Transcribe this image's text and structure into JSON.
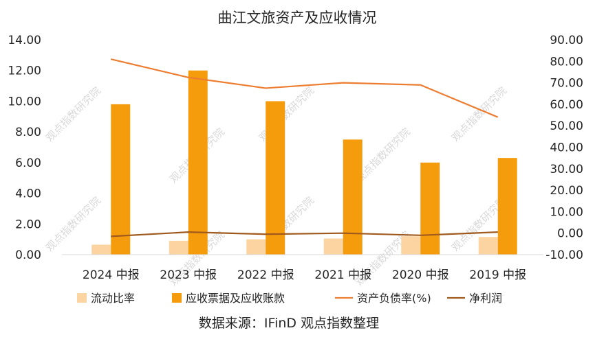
{
  "title": "曲江文旅资产及应收情况",
  "source": "数据来源：IFinD  观点指数整理",
  "watermark": "观点指数研究院",
  "colors": {
    "current_ratio": "#fbd4a2",
    "receivables": "#f59c0c",
    "debt_ratio": "#ed7d31",
    "net_profit": "#a05a1e"
  },
  "chart_data": {
    "type": "bar",
    "categories": [
      "2024 中报",
      "2023 中报",
      "2022 中报",
      "2021 中报",
      "2020 中报",
      "2019 中报"
    ],
    "left_axis": {
      "ylim": [
        0,
        14
      ],
      "ticks": [
        "0.00",
        "2.00",
        "4.00",
        "6.00",
        "8.00",
        "10.00",
        "12.00",
        "14.00"
      ]
    },
    "right_axis": {
      "ylim": [
        -10,
        90
      ],
      "ticks": [
        "-10.00",
        "0.00",
        "10.00",
        "20.00",
        "30.00",
        "40.00",
        "50.00",
        "60.00",
        "70.00",
        "80.00",
        "90.00"
      ]
    },
    "series": [
      {
        "name": "流动比率",
        "kind": "bar",
        "axis": "left",
        "values": [
          0.65,
          0.9,
          1.0,
          1.05,
          1.2,
          1.15
        ]
      },
      {
        "name": "应收票据及应收账款",
        "kind": "bar",
        "axis": "left",
        "values": [
          9.8,
          12.0,
          10.0,
          7.5,
          6.0,
          6.3
        ]
      },
      {
        "name": "资产负债率(%)",
        "kind": "line",
        "axis": "right",
        "values": [
          81.0,
          72.5,
          67.5,
          70.0,
          69.0,
          54.0
        ]
      },
      {
        "name": "净利润",
        "kind": "line",
        "axis": "right",
        "values": [
          -1.5,
          0.5,
          -0.5,
          0.0,
          -1.0,
          0.5
        ]
      }
    ],
    "legend_position": "bottom",
    "grid": false
  }
}
